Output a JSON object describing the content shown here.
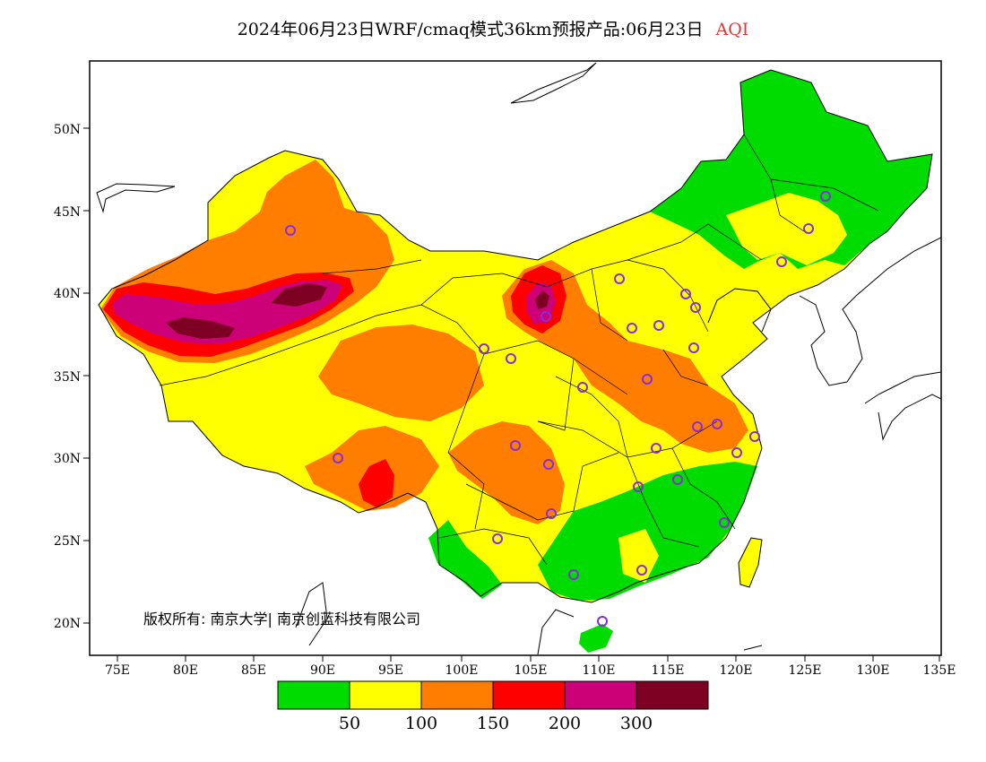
{
  "title": {
    "main": "2024年06月23日WRF/cmaq模式36km预报产品:06月23日",
    "variable": "AQI"
  },
  "copyright": "版权所有: 南京大学| 南京创蓝科技有限公司",
  "axes": {
    "lon_labels": [
      "75E",
      "80E",
      "85E",
      "90E",
      "95E",
      "100E",
      "105E",
      "110E",
      "115E",
      "120E",
      "125E",
      "130E",
      "135E"
    ],
    "lat_labels": [
      "50N",
      "45N",
      "40N",
      "35N",
      "30N",
      "25N",
      "20N"
    ]
  },
  "legend": {
    "colors": [
      "#00dc00",
      "#ffff00",
      "#ff7e00",
      "#ff0000",
      "#cc0077",
      "#7e0023"
    ],
    "labels": [
      "50",
      "100",
      "150",
      "200",
      "300"
    ]
  },
  "colors": {
    "good": "#00dc00",
    "moderate": "#ffff00",
    "usg": "#ff7e00",
    "unhealthy": "#ff0000",
    "very_unhealthy": "#cc0077",
    "hazardous": "#7e0023",
    "station_marker": "#8a2be2"
  }
}
